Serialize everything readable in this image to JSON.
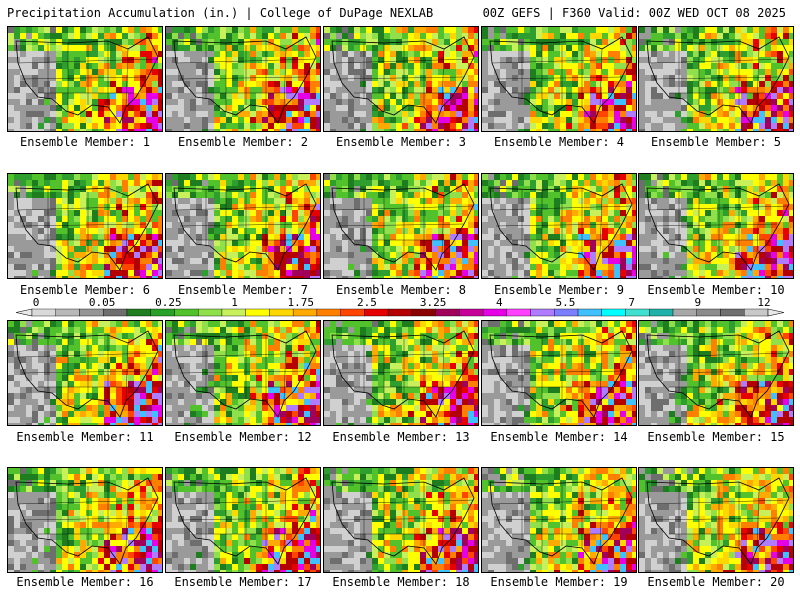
{
  "header": {
    "title": "Precipitation Accumulation (in.) | College of DuPage NEXLAB",
    "run_info": "00Z GEFS | F360 Valid: 00Z WED OCT 08 2025"
  },
  "legend": {
    "labels": [
      "0",
      "0.05",
      "0.25",
      "1",
      "1.75",
      "2.5",
      "3.25",
      "4",
      "5.5",
      "7",
      "9",
      "12"
    ],
    "colors": [
      "#d9d9d9",
      "#b8b8b8",
      "#969696",
      "#6e6e6e",
      "#1e7d1e",
      "#27a127",
      "#52c22c",
      "#8fe04a",
      "#c8f05a",
      "#ffff00",
      "#ffd700",
      "#ffaa00",
      "#ff7f00",
      "#ff4500",
      "#e60000",
      "#b40000",
      "#8b0000",
      "#a0005a",
      "#c8009a",
      "#e600e6",
      "#ff40ff",
      "#b07cff",
      "#7d7dff",
      "#40c0ff",
      "#00ffff",
      "#40e0d0",
      "#20b2aa",
      "#a8a8a8",
      "#8c8c8c",
      "#707070",
      "#c8c8c8"
    ]
  },
  "members": [
    {
      "caption": "Ensemble Member: 1"
    },
    {
      "caption": "Ensemble Member: 2"
    },
    {
      "caption": "Ensemble Member: 3"
    },
    {
      "caption": "Ensemble Member: 4"
    },
    {
      "caption": "Ensemble Member: 5"
    },
    {
      "caption": "Ensemble Member: 6"
    },
    {
      "caption": "Ensemble Member: 7"
    },
    {
      "caption": "Ensemble Member: 8"
    },
    {
      "caption": "Ensemble Member: 9"
    },
    {
      "caption": "Ensemble Member: 10"
    },
    {
      "caption": "Ensemble Member: 11"
    },
    {
      "caption": "Ensemble Member: 12"
    },
    {
      "caption": "Ensemble Member: 13"
    },
    {
      "caption": "Ensemble Member: 14"
    },
    {
      "caption": "Ensemble Member: 15"
    },
    {
      "caption": "Ensemble Member: 16"
    },
    {
      "caption": "Ensemble Member: 17"
    },
    {
      "caption": "Ensemble Member: 18"
    },
    {
      "caption": "Ensemble Member: 19"
    },
    {
      "caption": "Ensemble Member: 20"
    }
  ]
}
